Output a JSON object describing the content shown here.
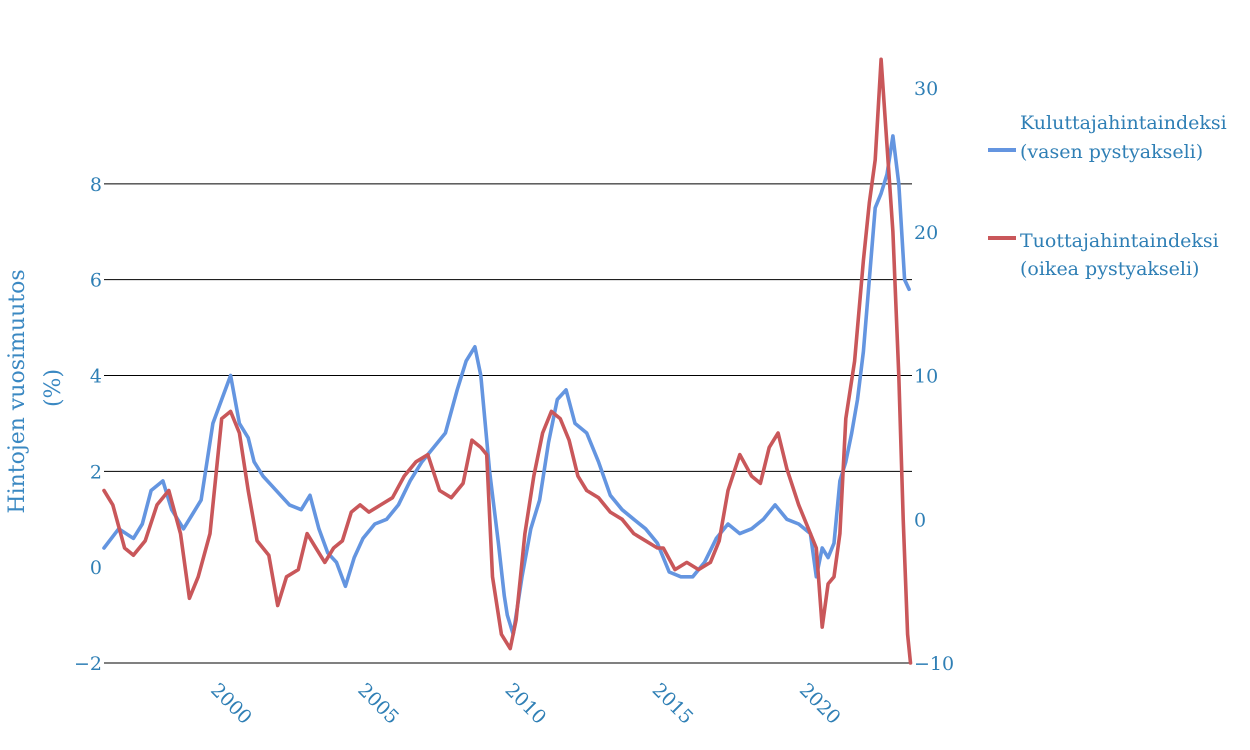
{
  "chart_data": {
    "type": "line",
    "title": "",
    "xlabel": "",
    "ylabel": "Hintojen vuosimuutos (%)",
    "ylabel_lines": [
      "Hintojen vuosimuutos",
      "(%)"
    ],
    "xlim": [
      1996.0,
      2023.45
    ],
    "ylim_left": [
      -2,
      10
    ],
    "ylim_right": [
      -10,
      30
    ],
    "x_ticks": [
      2000,
      2005,
      2010,
      2015,
      2020
    ],
    "y_ticks_left": [
      -2,
      0,
      2,
      4,
      6,
      8
    ],
    "y_ticks_right": [
      -10,
      0,
      10,
      20,
      30
    ],
    "y_tick_labels_left": [
      "−2",
      "0",
      "2",
      "4",
      "6",
      "8"
    ],
    "y_tick_labels_right": [
      "−10",
      "0",
      "10",
      "20",
      "30"
    ],
    "x_tick_labels": [
      "2000",
      "2005",
      "2010",
      "2015",
      "2020"
    ],
    "grid": true,
    "legend_position": "top-right",
    "colors": {
      "cpi": "#6495e0",
      "ppi": "#c9575a",
      "ticks": "#2f7fb5"
    },
    "series": [
      {
        "name": "Kuluttajahintaindeksi",
        "legend_lines": [
          "Kuluttajahintaindeksi",
          "(vasen pystyakseli)"
        ],
        "axis": "left",
        "color": "#6495e0",
        "x": [
          1996.0,
          1996.5,
          1997.0,
          1997.3,
          1997.6,
          1998.0,
          1998.3,
          1998.7,
          1999.0,
          1999.3,
          1999.7,
          2000.0,
          2000.3,
          2000.6,
          2000.9,
          2001.1,
          2001.4,
          2001.7,
          2002.0,
          2002.3,
          2002.7,
          2003.0,
          2003.3,
          2003.6,
          2003.9,
          2004.2,
          2004.5,
          2004.8,
          2005.2,
          2005.6,
          2006.0,
          2006.4,
          2006.8,
          2007.2,
          2007.6,
          2008.0,
          2008.3,
          2008.6,
          2008.8,
          2009.1,
          2009.4,
          2009.6,
          2009.7,
          2009.9,
          2010.2,
          2010.5,
          2010.8,
          2011.1,
          2011.4,
          2011.7,
          2012.0,
          2012.4,
          2012.8,
          2013.2,
          2013.6,
          2014.0,
          2014.4,
          2014.8,
          2015.2,
          2015.6,
          2016.0,
          2016.4,
          2016.8,
          2017.2,
          2017.6,
          2018.0,
          2018.4,
          2018.8,
          2019.2,
          2019.6,
          2020.0,
          2020.2,
          2020.4,
          2020.6,
          2020.8,
          2021.0,
          2021.2,
          2021.4,
          2021.6,
          2021.8,
          2022.0,
          2022.2,
          2022.4,
          2022.6,
          2022.8,
          2023.0,
          2023.2,
          2023.35
        ],
        "values": [
          0.4,
          0.8,
          0.6,
          0.9,
          1.6,
          1.8,
          1.2,
          0.8,
          1.1,
          1.4,
          3.0,
          3.5,
          4.0,
          3.0,
          2.7,
          2.2,
          1.9,
          1.7,
          1.5,
          1.3,
          1.2,
          1.5,
          0.8,
          0.3,
          0.1,
          -0.4,
          0.2,
          0.6,
          0.9,
          1.0,
          1.3,
          1.8,
          2.2,
          2.5,
          2.8,
          3.7,
          4.3,
          4.6,
          4.0,
          2.0,
          0.5,
          -0.6,
          -1.0,
          -1.4,
          -0.2,
          0.8,
          1.4,
          2.6,
          3.5,
          3.7,
          3.0,
          2.8,
          2.2,
          1.5,
          1.2,
          1.0,
          0.8,
          0.5,
          -0.1,
          -0.2,
          -0.2,
          0.1,
          0.6,
          0.9,
          0.7,
          0.8,
          1.0,
          1.3,
          1.0,
          0.9,
          0.7,
          -0.2,
          0.4,
          0.2,
          0.5,
          1.8,
          2.2,
          2.8,
          3.5,
          4.5,
          6.0,
          7.5,
          7.8,
          8.2,
          9.0,
          8.0,
          6.0,
          5.8
        ]
      },
      {
        "name": "Tuottajahintaindeksi",
        "legend_lines": [
          "Tuottajahintaindeksi",
          "(oikea pystyakseli)"
        ],
        "axis": "right",
        "color": "#c9575a",
        "x": [
          1996.0,
          1996.3,
          1996.7,
          1997.0,
          1997.4,
          1997.8,
          1998.2,
          1998.6,
          1998.9,
          1999.2,
          1999.6,
          2000.0,
          2000.3,
          2000.6,
          2000.9,
          2001.2,
          2001.6,
          2001.9,
          2002.2,
          2002.6,
          2002.9,
          2003.2,
          2003.5,
          2003.8,
          2004.1,
          2004.4,
          2004.7,
          2005.0,
          2005.4,
          2005.8,
          2006.2,
          2006.6,
          2007.0,
          2007.4,
          2007.8,
          2008.2,
          2008.5,
          2008.8,
          2009.0,
          2009.2,
          2009.5,
          2009.8,
          2010.0,
          2010.3,
          2010.6,
          2010.9,
          2011.2,
          2011.5,
          2011.8,
          2012.1,
          2012.4,
          2012.8,
          2013.2,
          2013.6,
          2014.0,
          2014.4,
          2014.8,
          2015.0,
          2015.4,
          2015.8,
          2016.2,
          2016.6,
          2016.9,
          2017.2,
          2017.6,
          2018.0,
          2018.3,
          2018.6,
          2018.9,
          2019.2,
          2019.6,
          2020.0,
          2020.2,
          2020.4,
          2020.6,
          2020.8,
          2021.0,
          2021.2,
          2021.5,
          2021.8,
          2022.0,
          2022.2,
          2022.4,
          2022.6,
          2022.8,
          2023.0,
          2023.15,
          2023.3,
          2023.4
        ],
        "values": [
          2.0,
          1.0,
          -2.0,
          -2.5,
          -1.5,
          1.0,
          2.0,
          -1.0,
          -5.5,
          -4.0,
          -1.0,
          7.0,
          7.5,
          6.0,
          2.0,
          -1.5,
          -2.5,
          -6.0,
          -4.0,
          -3.5,
          -1.0,
          -2.0,
          -3.0,
          -2.0,
          -1.5,
          0.5,
          1.0,
          0.5,
          1.0,
          1.5,
          3.0,
          4.0,
          4.5,
          2.0,
          1.5,
          2.5,
          5.5,
          5.0,
          4.5,
          -4.0,
          -8.0,
          -9.0,
          -7.0,
          -1.0,
          3.0,
          6.0,
          7.5,
          7.0,
          5.5,
          3.0,
          2.0,
          1.5,
          0.5,
          0.0,
          -1.0,
          -1.5,
          -2.0,
          -2.0,
          -3.5,
          -3.0,
          -3.5,
          -3.0,
          -1.5,
          2.0,
          4.5,
          3.0,
          2.5,
          5.0,
          6.0,
          3.5,
          1.0,
          -1.0,
          -2.0,
          -7.5,
          -4.5,
          -4.0,
          -1.0,
          7.0,
          11.0,
          18.0,
          22.0,
          25.0,
          32.0,
          26.0,
          20.0,
          10.0,
          0.0,
          -8.0,
          -10.0
        ]
      }
    ]
  }
}
